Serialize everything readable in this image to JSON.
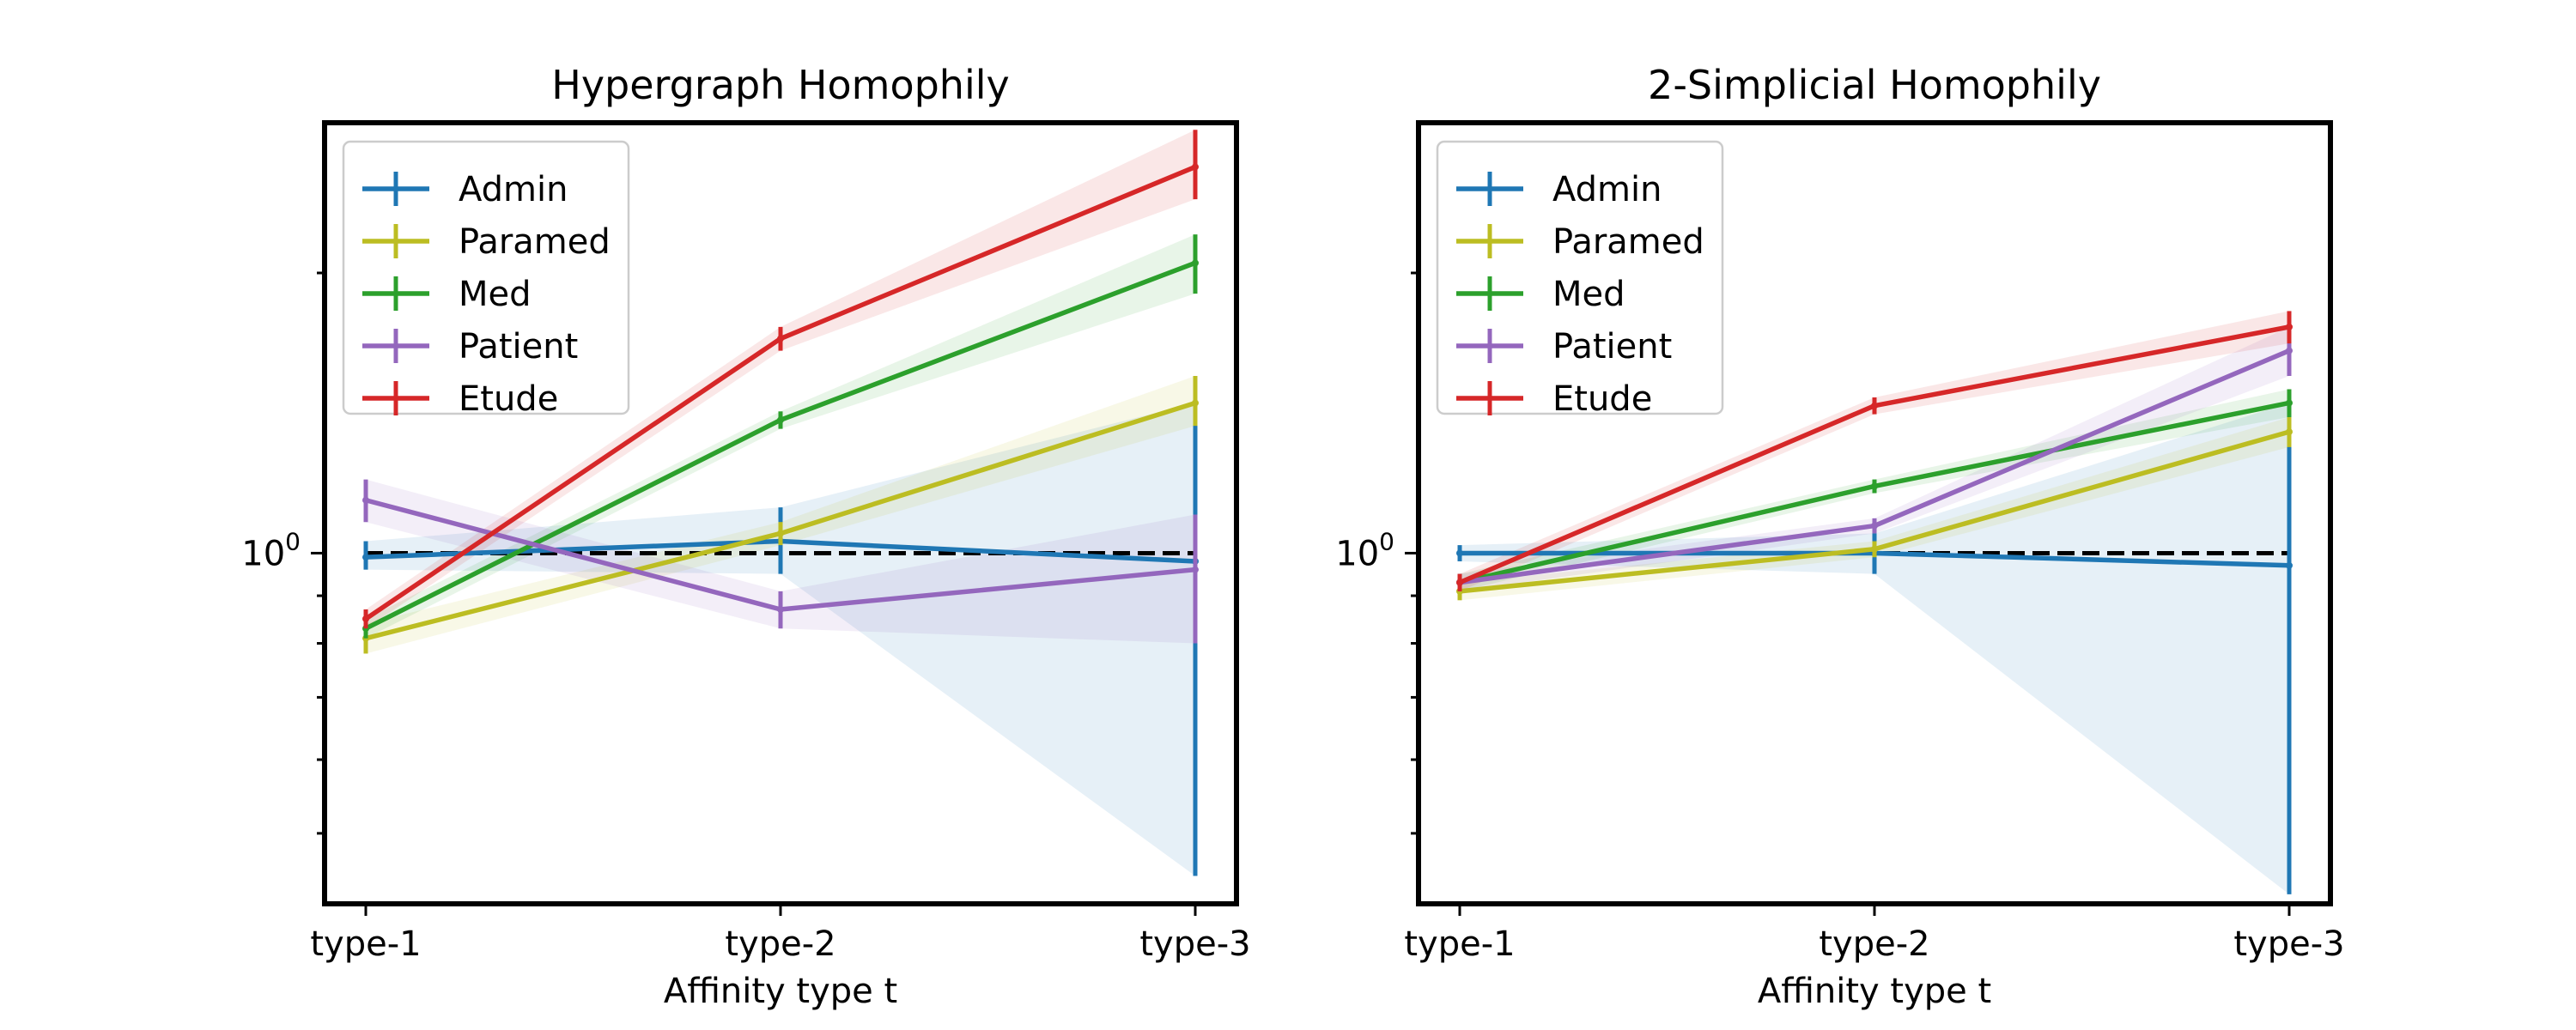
{
  "chart_data": [
    {
      "type": "line",
      "title": "Hypergraph Homophily",
      "xlabel": "Affinity type t",
      "ylabel": "",
      "yscale": "log",
      "ylim": [
        0.42,
        2.9
      ],
      "ytick_labels": [
        {
          "value": 1,
          "base": "10",
          "exp": "0"
        }
      ],
      "categories": [
        "type-1",
        "type-2",
        "type-3"
      ],
      "reference_line": {
        "value": 1,
        "style": "dashed",
        "color": "#000000"
      },
      "legend": "top-left",
      "grid": false,
      "series": [
        {
          "name": "Admin",
          "color": "#1f77b4",
          "values": [
            0.99,
            1.03,
            0.98
          ],
          "lower": [
            0.96,
            0.95,
            0.45
          ],
          "upper": [
            1.03,
            1.12,
            1.45
          ]
        },
        {
          "name": "Paramed",
          "color": "#bcbd22",
          "values": [
            0.81,
            1.05,
            1.45
          ],
          "lower": [
            0.78,
            1.02,
            1.37
          ],
          "upper": [
            0.84,
            1.08,
            1.55
          ]
        },
        {
          "name": "Med",
          "color": "#2ca02c",
          "values": [
            0.83,
            1.39,
            2.05
          ],
          "lower": [
            0.81,
            1.36,
            1.9
          ],
          "upper": [
            0.85,
            1.42,
            2.2
          ]
        },
        {
          "name": "Patient",
          "color": "#9467bd",
          "values": [
            1.14,
            0.87,
            0.96
          ],
          "lower": [
            1.08,
            0.83,
            0.8
          ],
          "upper": [
            1.2,
            0.91,
            1.1
          ]
        },
        {
          "name": "Etude",
          "color": "#d62728",
          "values": [
            0.85,
            1.7,
            2.6
          ],
          "lower": [
            0.83,
            1.65,
            2.4
          ],
          "upper": [
            0.87,
            1.75,
            2.85
          ]
        }
      ]
    },
    {
      "type": "line",
      "title": "2-Simplicial Homophily",
      "xlabel": "Affinity type t",
      "ylabel": "",
      "yscale": "log",
      "ylim": [
        0.42,
        2.9
      ],
      "ytick_labels": [
        {
          "value": 1,
          "base": "10",
          "exp": "0"
        }
      ],
      "categories": [
        "type-1",
        "type-2",
        "type-3"
      ],
      "reference_line": {
        "value": 1,
        "style": "dashed",
        "color": "#000000"
      },
      "legend": "top-left",
      "grid": false,
      "series": [
        {
          "name": "Admin",
          "color": "#1f77b4",
          "values": [
            1.0,
            1.0,
            0.97
          ],
          "lower": [
            0.98,
            0.95,
            0.43
          ],
          "upper": [
            1.02,
            1.05,
            1.45
          ]
        },
        {
          "name": "Paramed",
          "color": "#bcbd22",
          "values": [
            0.91,
            1.01,
            1.35
          ],
          "lower": [
            0.89,
            0.99,
            1.3
          ],
          "upper": [
            0.93,
            1.03,
            1.4
          ]
        },
        {
          "name": "Med",
          "color": "#2ca02c",
          "values": [
            0.93,
            1.18,
            1.45
          ],
          "lower": [
            0.91,
            1.16,
            1.4
          ],
          "upper": [
            0.95,
            1.2,
            1.5
          ]
        },
        {
          "name": "Patient",
          "color": "#9467bd",
          "values": [
            0.93,
            1.07,
            1.65
          ],
          "lower": [
            0.91,
            1.05,
            1.55
          ],
          "upper": [
            0.95,
            1.09,
            1.75
          ]
        },
        {
          "name": "Etude",
          "color": "#d62728",
          "values": [
            0.93,
            1.44,
            1.75
          ],
          "lower": [
            0.91,
            1.41,
            1.68
          ],
          "upper": [
            0.95,
            1.47,
            1.82
          ]
        }
      ]
    }
  ]
}
